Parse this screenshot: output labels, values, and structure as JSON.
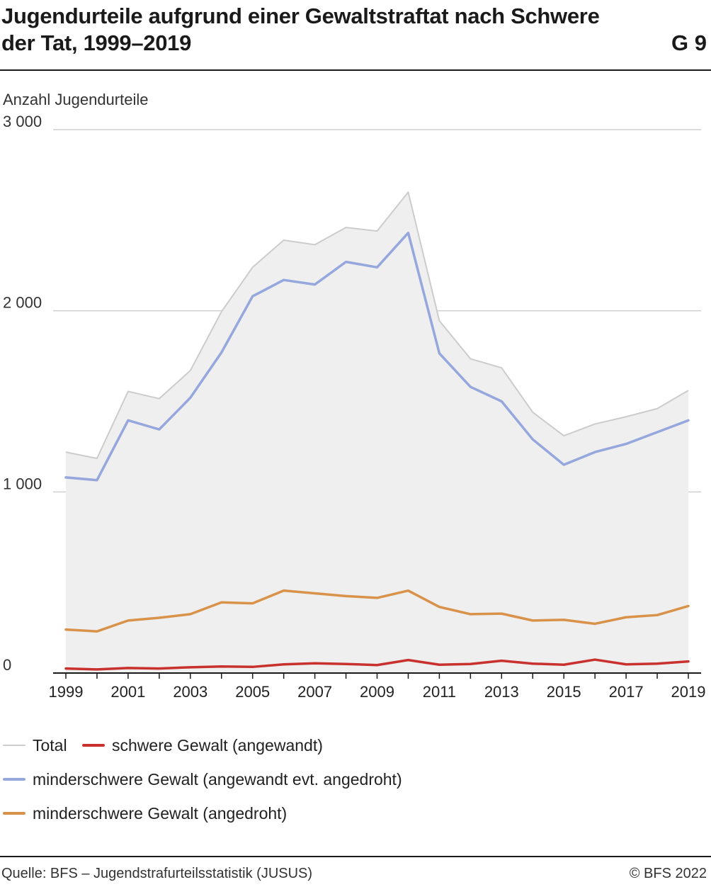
{
  "header": {
    "title": "Jugendurteile aufgrund einer Gewaltstraftat nach Schwere der Tat, 1999–2019",
    "figure_number": "G 9"
  },
  "footer": {
    "source": "Quelle: BFS – Jugendstrafurteilsstatistik (JUSUS)",
    "copyright": "© BFS 2022"
  },
  "chart_data": {
    "type": "line",
    "ylabel": "Anzahl Jugendurteile",
    "xlabel": "",
    "ylim": [
      0,
      3000
    ],
    "yticks": [
      0,
      1000,
      2000,
      3000
    ],
    "ytick_labels": [
      "0",
      "1 000",
      "2 000",
      "3 000"
    ],
    "xtick_labels": [
      "1999",
      "2001",
      "2003",
      "2005",
      "2007",
      "2009",
      "2011",
      "2013",
      "2015",
      "2017",
      "2019"
    ],
    "grid": true,
    "legend_position": "bottom",
    "x": [
      1999,
      2000,
      2001,
      2002,
      2003,
      2004,
      2005,
      2006,
      2007,
      2008,
      2009,
      2010,
      2011,
      2012,
      2013,
      2014,
      2015,
      2016,
      2017,
      2018,
      2019
    ],
    "series": [
      {
        "name": "Total",
        "style": "area",
        "color": "#cccccc",
        "fill": "#efefef",
        "values": [
          1220,
          1185,
          1555,
          1515,
          1670,
          1995,
          2240,
          2390,
          2365,
          2460,
          2440,
          2655,
          1945,
          1735,
          1685,
          1440,
          1310,
          1375,
          1415,
          1460,
          1560
        ]
      },
      {
        "name": "schwere Gewalt (angewandt)",
        "style": "line",
        "color": "#c8312d",
        "values": [
          25,
          20,
          28,
          25,
          32,
          36,
          34,
          48,
          54,
          50,
          44,
          72,
          46,
          50,
          68,
          52,
          46,
          74,
          48,
          52,
          64
        ]
      },
      {
        "name": "minderschwere Gewalt (angewandt evt. angedroht)",
        "style": "line",
        "color": "#95a7dc",
        "values": [
          1080,
          1065,
          1395,
          1345,
          1520,
          1770,
          2080,
          2170,
          2145,
          2270,
          2240,
          2430,
          1765,
          1580,
          1500,
          1290,
          1150,
          1220,
          1265,
          1330,
          1395
        ]
      },
      {
        "name": "minderschwere Gewalt (angedroht)",
        "style": "line",
        "color": "#d9924a",
        "values": [
          240,
          230,
          290,
          305,
          325,
          390,
          385,
          455,
          440,
          425,
          415,
          455,
          365,
          325,
          328,
          290,
          294,
          272,
          308,
          320,
          370
        ]
      }
    ]
  }
}
